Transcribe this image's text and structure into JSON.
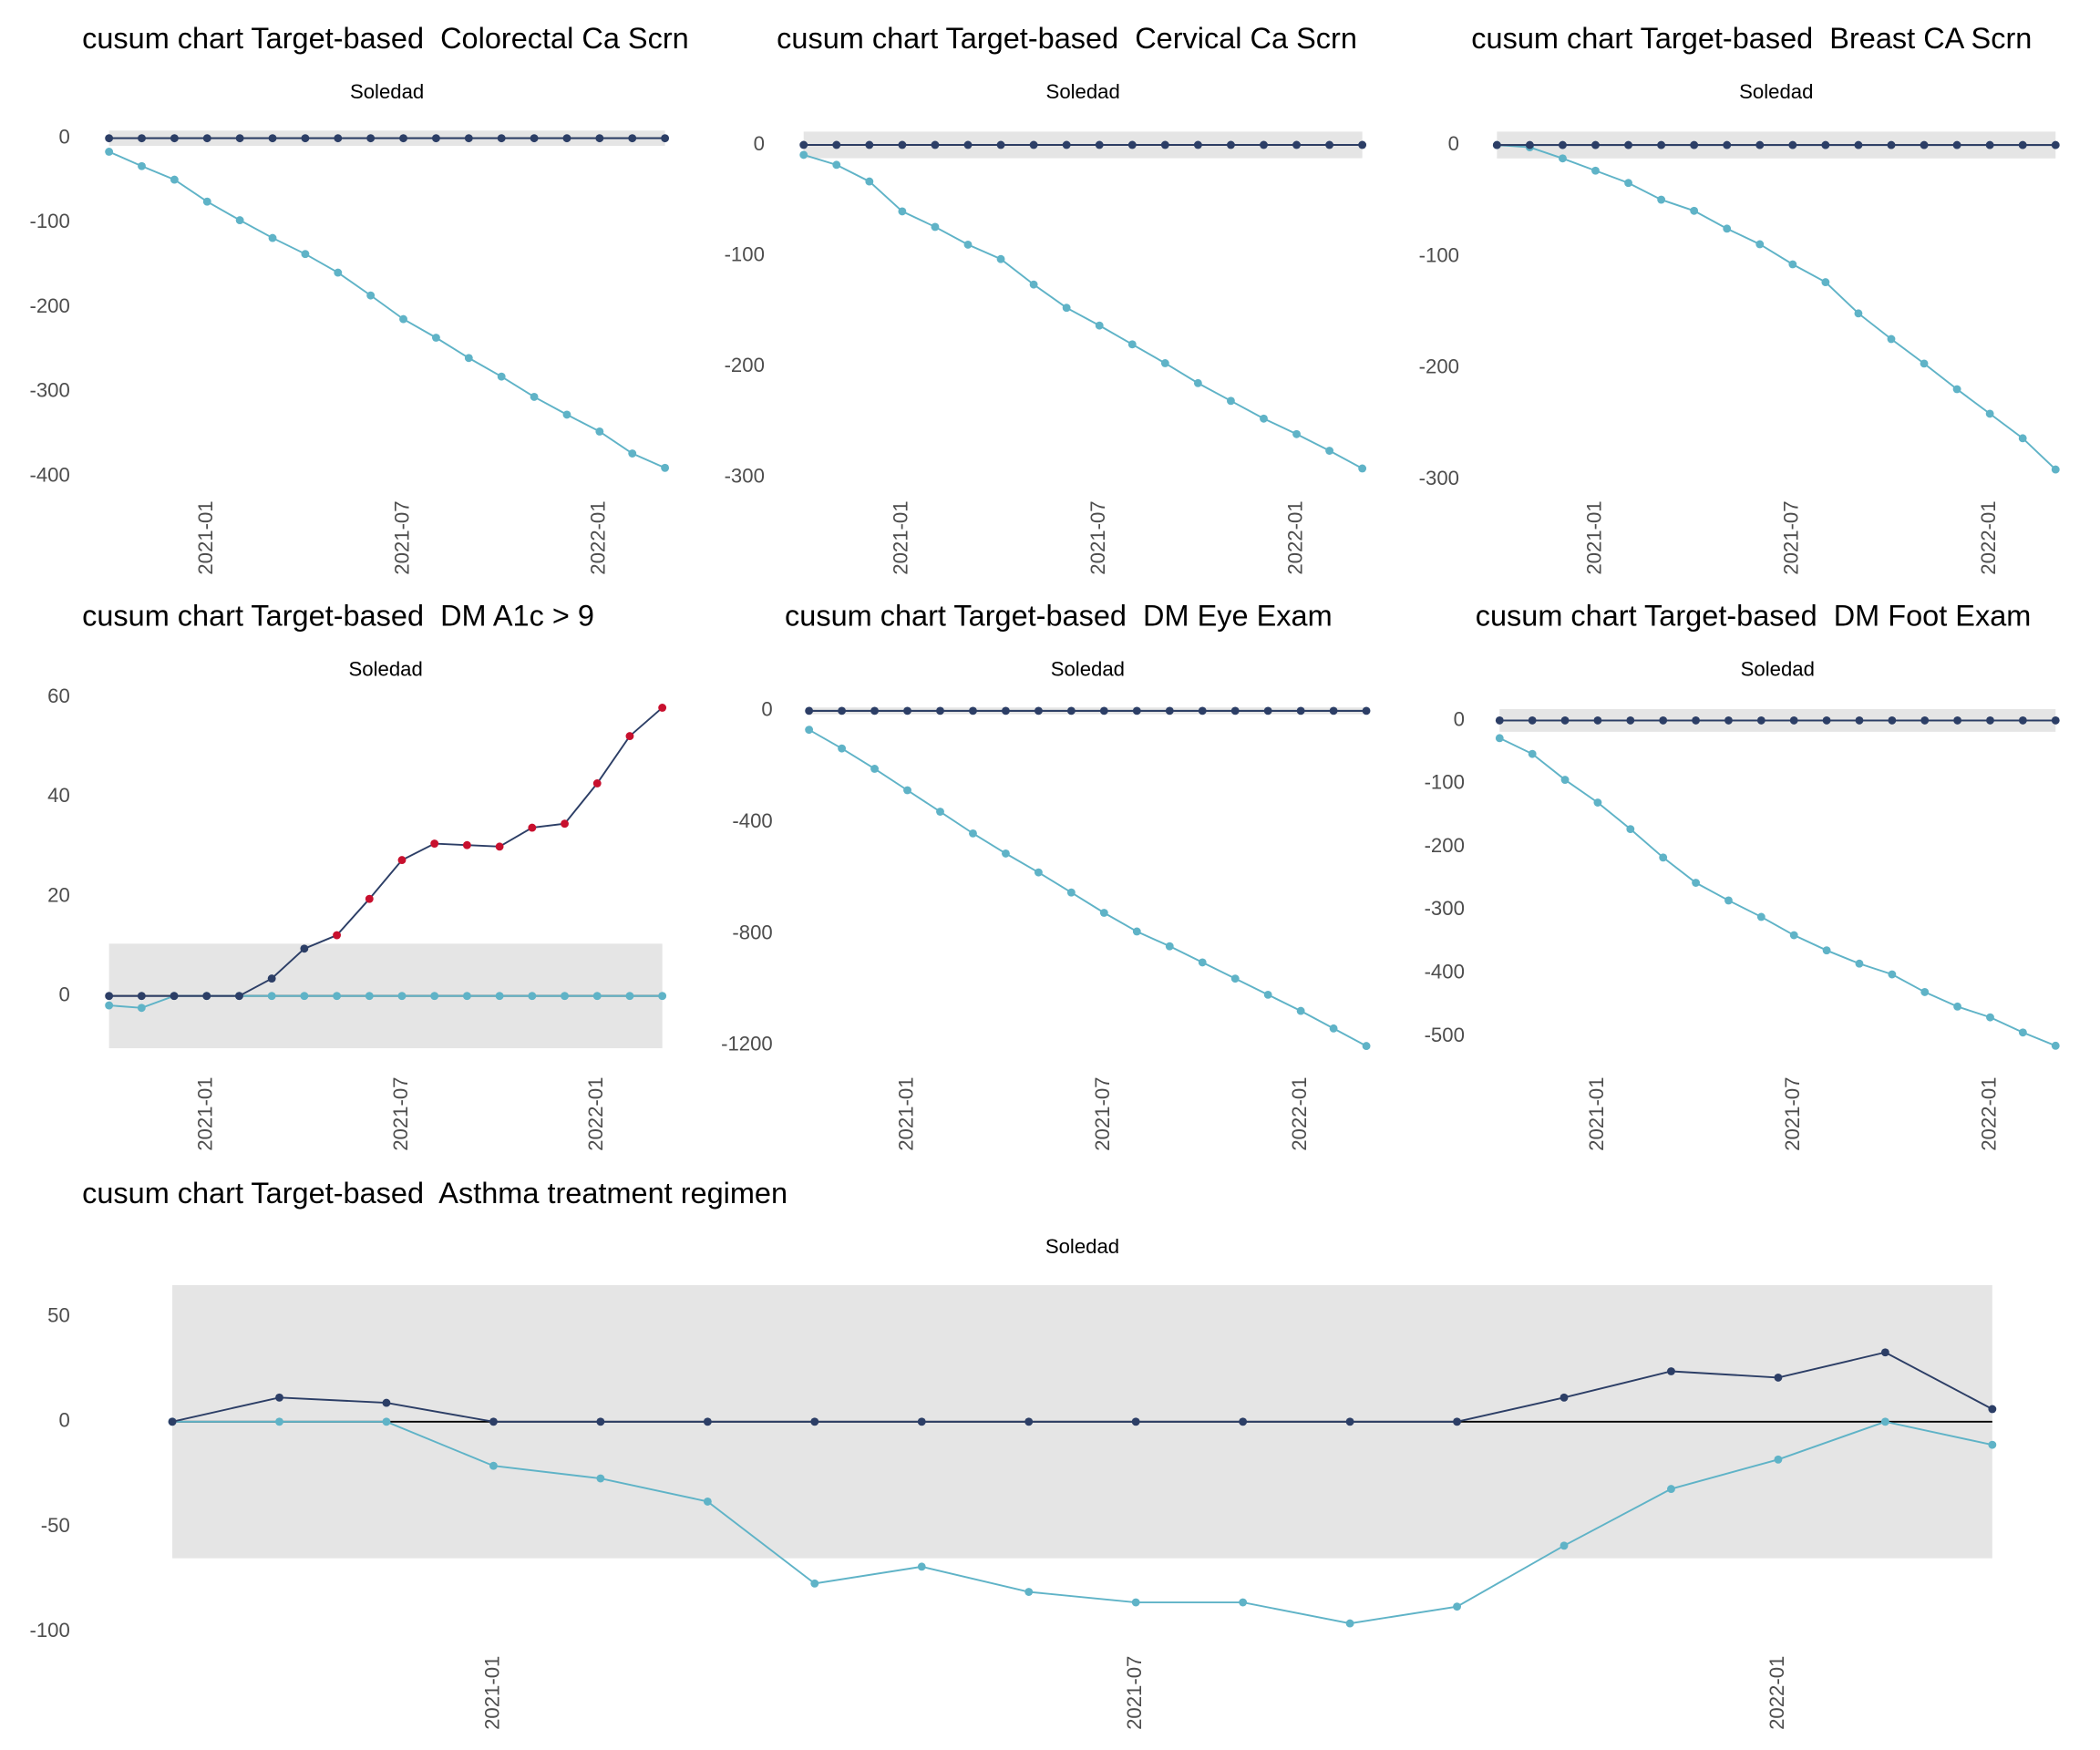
{
  "chart_data": [
    {
      "type": "line",
      "title": "cusum chart Target-based  Colorectal Ca Scrn",
      "subtitle": "Soledad",
      "x": [
        "2020-10",
        "2020-11",
        "2020-12",
        "2021-01",
        "2021-02",
        "2021-03",
        "2021-04",
        "2021-05",
        "2021-06",
        "2021-07",
        "2021-08",
        "2021-09",
        "2021-10",
        "2021-11",
        "2021-12",
        "2022-01",
        "2022-02",
        "2022-03"
      ],
      "xticks": [
        "2021-01",
        "2021-07",
        "2022-01"
      ],
      "ylim": [
        -413,
        17
      ],
      "yticks": [
        0,
        -100,
        -200,
        -300,
        -400
      ],
      "control_limits": [
        -9,
        9
      ],
      "centerline": 0,
      "series": [
        {
          "color": "#5fb3c7",
          "values": [
            -16,
            -33,
            -49,
            -75,
            -97,
            -118,
            -137,
            -159,
            -186,
            -214,
            -236,
            -260,
            -282,
            -306,
            -327,
            -347,
            -373,
            -390
          ]
        },
        {
          "color": "#2c3e66",
          "values": [
            0,
            0,
            0,
            0,
            0,
            0,
            0,
            0,
            0,
            0,
            0,
            0,
            0,
            0,
            0,
            0,
            0,
            0
          ]
        }
      ]
    },
    {
      "type": "line",
      "title": "cusum chart Target-based  Cervical Ca Scrn",
      "subtitle": "Soledad",
      "x": [
        "2020-10",
        "2020-11",
        "2020-12",
        "2021-01",
        "2021-02",
        "2021-03",
        "2021-04",
        "2021-05",
        "2021-06",
        "2021-07",
        "2021-08",
        "2021-09",
        "2021-10",
        "2021-11",
        "2021-12",
        "2022-01",
        "2022-02",
        "2022-03"
      ],
      "xticks": [
        "2021-01",
        "2021-07",
        "2022-01"
      ],
      "ylim": [
        -309,
        19
      ],
      "yticks": [
        0,
        -100,
        -200,
        -300
      ],
      "control_limits": [
        -12,
        12
      ],
      "centerline": 0,
      "series": [
        {
          "color": "#5fb3c7",
          "values": [
            -9,
            -18,
            -33,
            -60,
            -74,
            -90,
            -103,
            -126,
            -147,
            -163,
            -180,
            -197,
            -215,
            -231,
            -247,
            -261,
            -276,
            -292
          ]
        },
        {
          "color": "#2c3e66",
          "values": [
            0,
            0,
            0,
            0,
            0,
            0,
            0,
            0,
            0,
            0,
            0,
            0,
            0,
            0,
            0,
            0,
            0,
            0
          ]
        }
      ]
    },
    {
      "type": "line",
      "title": "cusum chart Target-based  Breast CA Scrn",
      "subtitle": "Soledad",
      "x": [
        "2020-10",
        "2020-11",
        "2020-12",
        "2021-01",
        "2021-02",
        "2021-03",
        "2021-04",
        "2021-05",
        "2021-06",
        "2021-07",
        "2021-08",
        "2021-09",
        "2021-10",
        "2021-11",
        "2021-12",
        "2022-01",
        "2022-02",
        "2022-03"
      ],
      "xticks": [
        "2021-01",
        "2021-07",
        "2022-01"
      ],
      "ylim": [
        -307,
        19
      ],
      "yticks": [
        0,
        -100,
        -200,
        -300
      ],
      "control_limits": [
        -12,
        12
      ],
      "centerline": 0,
      "series": [
        {
          "color": "#5fb3c7",
          "values": [
            0,
            -2,
            -12,
            -23,
            -34,
            -49,
            -59,
            -75,
            -89,
            -107,
            -123,
            -151,
            -174,
            -196,
            -219,
            -241,
            -263,
            -291
          ]
        },
        {
          "color": "#2c3e66",
          "values": [
            0,
            0,
            0,
            0,
            0,
            0,
            0,
            0,
            0,
            0,
            0,
            0,
            0,
            0,
            0,
            0,
            0,
            0
          ]
        }
      ]
    },
    {
      "type": "line",
      "title": "cusum chart Target-based  DM A1c > 9",
      "subtitle": "Soledad",
      "x": [
        "2020-10",
        "2020-11",
        "2020-12",
        "2021-01",
        "2021-02",
        "2021-03",
        "2021-04",
        "2021-05",
        "2021-06",
        "2021-07",
        "2021-08",
        "2021-09",
        "2021-10",
        "2021-11",
        "2021-12",
        "2022-01",
        "2022-02",
        "2022-03"
      ],
      "xticks": [
        "2021-01",
        "2021-07",
        "2022-01"
      ],
      "ylim": [
        -11.4,
        60.8
      ],
      "yticks": [
        0,
        20,
        40,
        60
      ],
      "control_limits": [
        -10.5,
        10.5
      ],
      "centerline": 0,
      "series": [
        {
          "color": "#5fb3c7",
          "values": [
            -1.9,
            -2.4,
            0,
            0,
            0,
            0,
            0,
            0,
            0,
            0,
            0,
            0,
            0,
            0,
            0,
            0,
            0,
            0
          ]
        },
        {
          "color": "#2c3e66",
          "values": [
            0,
            0,
            0,
            0,
            0,
            3.5,
            9.5,
            12.2,
            19.5,
            27.3,
            30.6,
            30.3,
            30,
            33.8,
            34.6,
            42.7,
            52.2,
            57.9
          ],
          "point_colors": [
            "#2c3e66",
            "#2c3e66",
            "#2c3e66",
            "#2c3e66",
            "#2c3e66",
            "#2c3e66",
            "#2c3e66",
            "#c8102e",
            "#c8102e",
            "#c8102e",
            "#c8102e",
            "#c8102e",
            "#c8102e",
            "#c8102e",
            "#c8102e",
            "#c8102e",
            "#c8102e",
            "#c8102e"
          ]
        }
      ]
    },
    {
      "type": "line",
      "title": "cusum chart Target-based  DM Eye Exam",
      "subtitle": "Soledad",
      "x": [
        "2020-10",
        "2020-11",
        "2020-12",
        "2021-01",
        "2021-02",
        "2021-03",
        "2021-04",
        "2021-05",
        "2021-06",
        "2021-07",
        "2021-08",
        "2021-09",
        "2021-10",
        "2021-11",
        "2021-12",
        "2022-01",
        "2022-02",
        "2022-03"
      ],
      "xticks": [
        "2021-01",
        "2021-07",
        "2022-01"
      ],
      "ylim": [
        -1227,
        63
      ],
      "yticks": [
        0,
        -400,
        -800,
        -1200
      ],
      "control_limits": [
        -12,
        12
      ],
      "centerline": 0,
      "series": [
        {
          "color": "#5fb3c7",
          "values": [
            -68,
            -135,
            -208,
            -285,
            -362,
            -440,
            -512,
            -580,
            -652,
            -725,
            -792,
            -845,
            -903,
            -961,
            -1019,
            -1077,
            -1140,
            -1203
          ]
        },
        {
          "color": "#2c3e66",
          "values": [
            0,
            0,
            0,
            0,
            0,
            0,
            0,
            0,
            0,
            0,
            0,
            0,
            0,
            0,
            0,
            0,
            0,
            0
          ]
        }
      ]
    },
    {
      "type": "line",
      "title": "cusum chart Target-based  DM Foot Exam",
      "subtitle": "Soledad",
      "x": [
        "2020-10",
        "2020-11",
        "2020-12",
        "2021-01",
        "2021-02",
        "2021-03",
        "2021-04",
        "2021-05",
        "2021-06",
        "2021-07",
        "2021-08",
        "2021-09",
        "2021-10",
        "2021-11",
        "2021-12",
        "2022-01",
        "2022-02",
        "2022-03"
      ],
      "xticks": [
        "2021-01",
        "2021-07",
        "2022-01"
      ],
      "ylim": [
        -526,
        43
      ],
      "yticks": [
        0,
        -100,
        -200,
        -300,
        -400,
        -500
      ],
      "control_limits": [
        -18,
        18
      ],
      "centerline": 0,
      "series": [
        {
          "color": "#5fb3c7",
          "values": [
            -28,
            -53,
            -94,
            -130,
            -172,
            -217,
            -257,
            -285,
            -311,
            -340,
            -364,
            -385,
            -402,
            -430,
            -453,
            -470,
            -494,
            -515
          ]
        },
        {
          "color": "#2c3e66",
          "values": [
            0,
            0,
            0,
            0,
            0,
            0,
            0,
            0,
            0,
            0,
            0,
            0,
            0,
            0,
            0,
            0,
            0,
            0
          ]
        }
      ]
    },
    {
      "type": "line",
      "title": "cusum chart Target-based  Asthma treatment regimen",
      "subtitle": "Soledad",
      "x": [
        "2020-10",
        "2020-11",
        "2020-12",
        "2021-01",
        "2021-02",
        "2021-03",
        "2021-04",
        "2021-05",
        "2021-06",
        "2021-07",
        "2021-08",
        "2021-09",
        "2021-10",
        "2021-11",
        "2021-12",
        "2022-01",
        "2022-02",
        "2022-03"
      ],
      "xticks": [
        "2021-01",
        "2021-07",
        "2022-01"
      ],
      "ylim": [
        -105,
        68
      ],
      "yticks": [
        50,
        0,
        -50,
        -100
      ],
      "control_limits": [
        -65,
        65
      ],
      "centerline": 0,
      "series": [
        {
          "color": "#5fb3c7",
          "values": [
            0,
            0,
            0,
            -21,
            -27,
            -38,
            -77,
            -69,
            -81,
            -86,
            -86,
            -96,
            -88,
            -59,
            -32,
            -18,
            0,
            -11
          ]
        },
        {
          "color": "#2c3e66",
          "values": [
            0,
            11.5,
            9,
            0,
            0,
            0,
            0,
            0,
            0,
            0,
            0,
            0,
            0,
            11.5,
            24,
            21,
            33,
            6
          ]
        }
      ]
    }
  ]
}
